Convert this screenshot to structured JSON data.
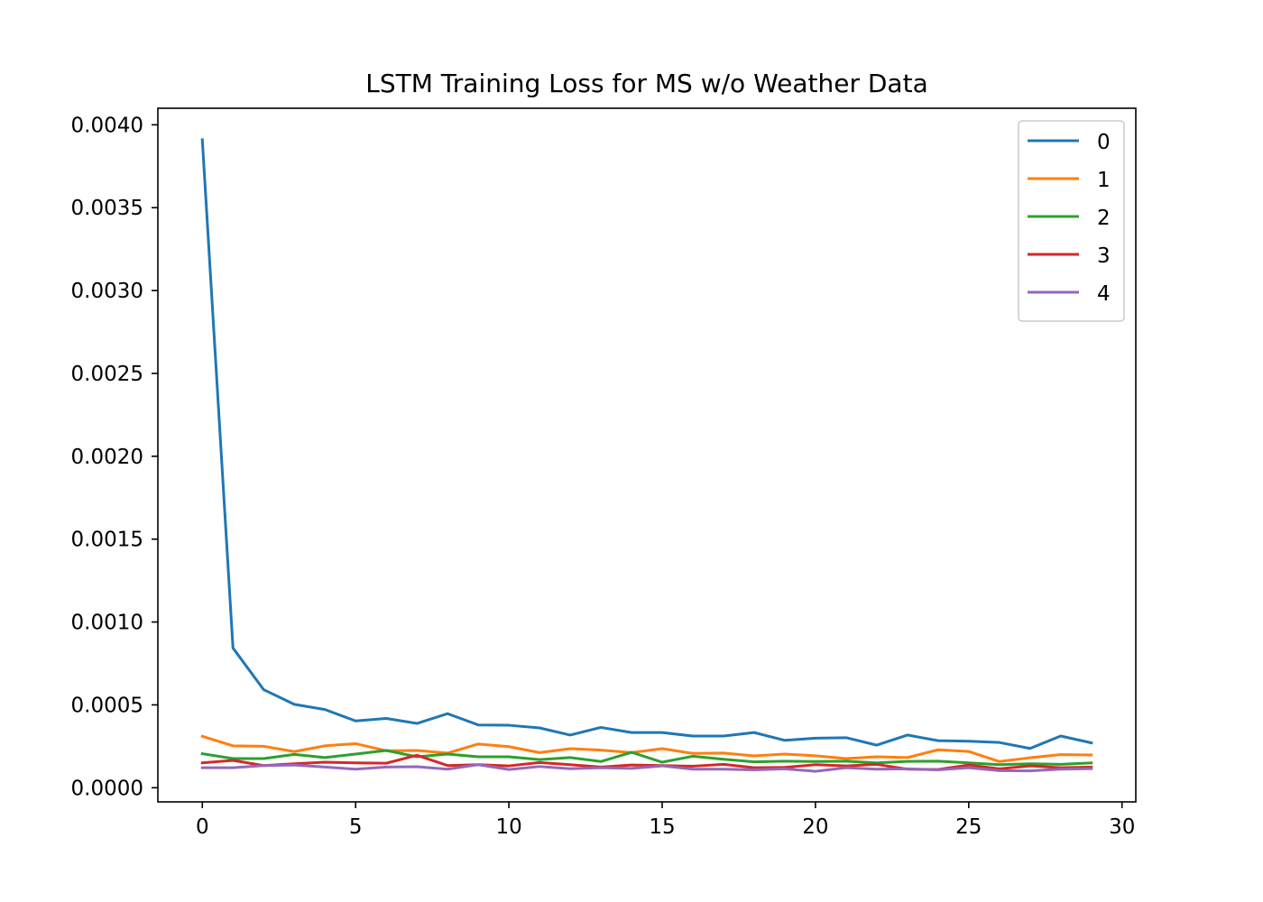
{
  "chart_data": {
    "type": "line",
    "title": "LSTM Training Loss for MS w/o Weather Data",
    "xlabel": "",
    "ylabel": "",
    "xlim": [
      -1.45,
      30.45
    ],
    "ylim": [
      -8.53e-05,
      0.0041
    ],
    "xticks": [
      0,
      5,
      10,
      15,
      20,
      25,
      30
    ],
    "xtick_labels": [
      "0",
      "5",
      "10",
      "15",
      "20",
      "25",
      "30"
    ],
    "yticks": [
      0.0,
      0.0005,
      0.001,
      0.0015,
      0.002,
      0.0025,
      0.003,
      0.0035,
      0.004
    ],
    "ytick_labels": [
      "0.0000",
      "0.0005",
      "0.0010",
      "0.0015",
      "0.0020",
      "0.0025",
      "0.0030",
      "0.0035",
      "0.0040"
    ],
    "grid": false,
    "legend_position": "top-right",
    "x": [
      0,
      1,
      2,
      3,
      4,
      5,
      6,
      7,
      8,
      9,
      10,
      11,
      12,
      13,
      14,
      15,
      16,
      17,
      18,
      19,
      20,
      21,
      22,
      23,
      24,
      25,
      26,
      27,
      28,
      29
    ],
    "series": [
      {
        "name": "0",
        "color": "#1f77b4",
        "values": [
          0.00391,
          0.000843,
          0.000592,
          0.000503,
          0.000472,
          0.000403,
          0.000418,
          0.000388,
          0.000447,
          0.000379,
          0.000377,
          0.000361,
          0.000318,
          0.000364,
          0.000333,
          0.000333,
          0.000312,
          0.000312,
          0.000333,
          0.000286,
          0.000299,
          0.000302,
          0.000257,
          0.000318,
          0.000284,
          0.000281,
          0.000273,
          0.000237,
          0.000312,
          0.000271
        ]
      },
      {
        "name": "1",
        "color": "#ff7f0e",
        "values": [
          0.00031,
          0.000253,
          0.00025,
          0.000218,
          0.000253,
          0.000266,
          0.000223,
          0.000225,
          0.000209,
          0.000264,
          0.000248,
          0.000212,
          0.000236,
          0.000227,
          0.000212,
          0.000236,
          0.000207,
          0.000209,
          0.000192,
          0.000203,
          0.000193,
          0.000176,
          0.000187,
          0.000182,
          0.000229,
          0.000219,
          0.000158,
          0.000181,
          0.0002,
          0.000198
        ]
      },
      {
        "name": "2",
        "color": "#2ca02c",
        "values": [
          0.000205,
          0.000176,
          0.000176,
          0.000201,
          0.000182,
          0.000203,
          0.000225,
          0.000187,
          0.000203,
          0.000187,
          0.000187,
          0.00017,
          0.000182,
          0.000158,
          0.000214,
          0.000154,
          0.00019,
          0.000172,
          0.000156,
          0.00016,
          0.000158,
          0.00016,
          0.00015,
          0.000159,
          0.00016,
          0.00015,
          0.000139,
          0.000145,
          0.000141,
          0.00015
        ]
      },
      {
        "name": "3",
        "color": "#d62728",
        "values": [
          0.00015,
          0.000165,
          0.000134,
          0.000145,
          0.000154,
          0.00015,
          0.000148,
          0.000196,
          0.000134,
          0.000139,
          0.000132,
          0.000152,
          0.000139,
          0.000125,
          0.000137,
          0.000134,
          0.00013,
          0.000141,
          0.000121,
          0.000123,
          0.000139,
          0.000132,
          0.000141,
          0.000112,
          0.00011,
          0.000137,
          0.000114,
          0.000132,
          0.000121,
          0.000125
        ]
      },
      {
        "name": "4",
        "color": "#9467bd",
        "values": [
          0.000121,
          0.000121,
          0.000134,
          0.000137,
          0.000125,
          0.000112,
          0.000125,
          0.000127,
          0.000112,
          0.000139,
          0.00011,
          0.000128,
          0.000115,
          0.000121,
          0.000117,
          0.000132,
          0.000112,
          0.000112,
          0.000108,
          0.000114,
          9.9e-05,
          0.000121,
          0.000112,
          0.000114,
          0.000108,
          0.000121,
          0.000103,
          0.000102,
          0.000112,
          0.000115
        ]
      }
    ]
  }
}
